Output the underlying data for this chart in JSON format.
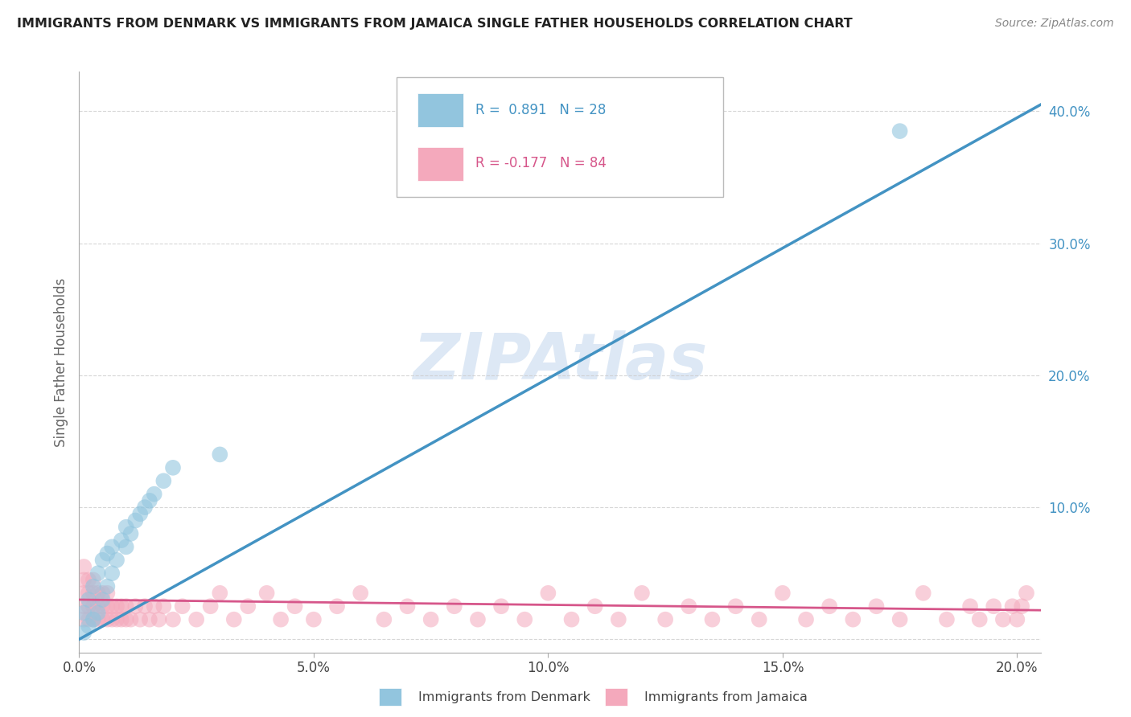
{
  "title": "IMMIGRANTS FROM DENMARK VS IMMIGRANTS FROM JAMAICA SINGLE FATHER HOUSEHOLDS CORRELATION CHART",
  "source": "Source: ZipAtlas.com",
  "ylabel": "Single Father Households",
  "xlim": [
    0.0,
    0.205
  ],
  "ylim": [
    -0.01,
    0.43
  ],
  "xticks": [
    0.0,
    0.05,
    0.1,
    0.15,
    0.2
  ],
  "yticks": [
    0.0,
    0.1,
    0.2,
    0.3,
    0.4
  ],
  "xtick_labels": [
    "0.0%",
    "5.0%",
    "10.0%",
    "15.0%",
    "20.0%"
  ],
  "ytick_labels": [
    "",
    "10.0%",
    "20.0%",
    "30.0%",
    "40.0%"
  ],
  "denmark_R": 0.891,
  "denmark_N": 28,
  "jamaica_R": -0.177,
  "jamaica_N": 84,
  "denmark_color": "#92c5de",
  "jamaica_color": "#f4a9bc",
  "denmark_line_color": "#4393c3",
  "jamaica_line_color": "#d6568a",
  "watermark_color": "#dde8f5",
  "background_color": "#ffffff",
  "denmark_x": [
    0.001,
    0.001,
    0.002,
    0.002,
    0.003,
    0.003,
    0.004,
    0.004,
    0.005,
    0.005,
    0.006,
    0.006,
    0.007,
    0.007,
    0.008,
    0.009,
    0.01,
    0.01,
    0.011,
    0.012,
    0.013,
    0.014,
    0.015,
    0.016,
    0.018,
    0.02,
    0.03,
    0.175
  ],
  "denmark_y": [
    0.005,
    0.02,
    0.01,
    0.03,
    0.015,
    0.04,
    0.02,
    0.05,
    0.03,
    0.06,
    0.04,
    0.065,
    0.05,
    0.07,
    0.06,
    0.075,
    0.07,
    0.085,
    0.08,
    0.09,
    0.095,
    0.1,
    0.105,
    0.11,
    0.12,
    0.13,
    0.14,
    0.385
  ],
  "jamaica_x": [
    0.001,
    0.001,
    0.001,
    0.001,
    0.001,
    0.002,
    0.002,
    0.002,
    0.002,
    0.003,
    0.003,
    0.003,
    0.003,
    0.004,
    0.004,
    0.004,
    0.005,
    0.005,
    0.005,
    0.006,
    0.006,
    0.006,
    0.007,
    0.007,
    0.008,
    0.008,
    0.009,
    0.009,
    0.01,
    0.01,
    0.011,
    0.012,
    0.013,
    0.014,
    0.015,
    0.016,
    0.017,
    0.018,
    0.02,
    0.022,
    0.025,
    0.028,
    0.03,
    0.033,
    0.036,
    0.04,
    0.043,
    0.046,
    0.05,
    0.055,
    0.06,
    0.065,
    0.07,
    0.075,
    0.08,
    0.085,
    0.09,
    0.095,
    0.1,
    0.105,
    0.11,
    0.115,
    0.12,
    0.125,
    0.13,
    0.135,
    0.14,
    0.145,
    0.15,
    0.155,
    0.16,
    0.165,
    0.17,
    0.175,
    0.18,
    0.185,
    0.19,
    0.192,
    0.195,
    0.197,
    0.199,
    0.2,
    0.201,
    0.202
  ],
  "jamaica_y": [
    0.015,
    0.025,
    0.035,
    0.045,
    0.055,
    0.015,
    0.025,
    0.035,
    0.045,
    0.015,
    0.025,
    0.035,
    0.045,
    0.015,
    0.025,
    0.035,
    0.015,
    0.025,
    0.035,
    0.015,
    0.025,
    0.035,
    0.015,
    0.025,
    0.015,
    0.025,
    0.015,
    0.025,
    0.015,
    0.025,
    0.015,
    0.025,
    0.015,
    0.025,
    0.015,
    0.025,
    0.015,
    0.025,
    0.015,
    0.025,
    0.015,
    0.025,
    0.035,
    0.015,
    0.025,
    0.035,
    0.015,
    0.025,
    0.015,
    0.025,
    0.035,
    0.015,
    0.025,
    0.015,
    0.025,
    0.015,
    0.025,
    0.015,
    0.035,
    0.015,
    0.025,
    0.015,
    0.035,
    0.015,
    0.025,
    0.015,
    0.025,
    0.015,
    0.035,
    0.015,
    0.025,
    0.015,
    0.025,
    0.015,
    0.035,
    0.015,
    0.025,
    0.015,
    0.025,
    0.015,
    0.025,
    0.015,
    0.025,
    0.035
  ],
  "dk_trend_x": [
    0.0,
    0.205
  ],
  "dk_trend_y": [
    0.0,
    0.405
  ],
  "jm_trend_x": [
    0.0,
    0.205
  ],
  "jm_trend_y": [
    0.03,
    0.022
  ]
}
